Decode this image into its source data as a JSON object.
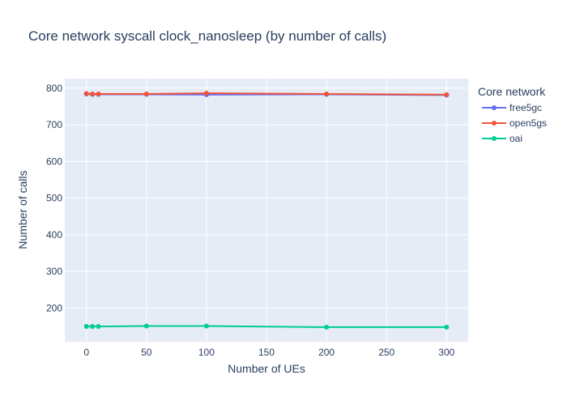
{
  "chart_data": {
    "type": "line",
    "title": "Core network syscall clock_nanosleep (by number of calls)",
    "xlabel": "Number of UEs",
    "ylabel": "Number of calls",
    "x": [
      0,
      5,
      10,
      50,
      100,
      200,
      300
    ],
    "xticks": [
      0,
      50,
      100,
      150,
      200,
      250,
      300
    ],
    "yticks": [
      200,
      300,
      400,
      500,
      600,
      700,
      800
    ],
    "xlim": [
      -18,
      318
    ],
    "ylim": [
      108,
      826
    ],
    "grid": true,
    "legend": {
      "title": "Core network",
      "position": "right"
    },
    "series": [
      {
        "name": "free5gc",
        "color": "#636efa",
        "values": [
          784,
          783,
          783,
          783,
          782,
          783,
          781
        ]
      },
      {
        "name": "open5gs",
        "color": "#ef553b",
        "values": [
          785,
          784,
          784,
          784,
          786,
          784,
          782
        ]
      },
      {
        "name": "oai",
        "color": "#00cc96",
        "values": [
          150,
          150,
          150,
          151,
          151,
          148,
          148
        ]
      }
    ]
  },
  "colors": {
    "plot_bg": "#e5ecf6",
    "grid": "#ffffff",
    "text": "#2a3f5f"
  }
}
